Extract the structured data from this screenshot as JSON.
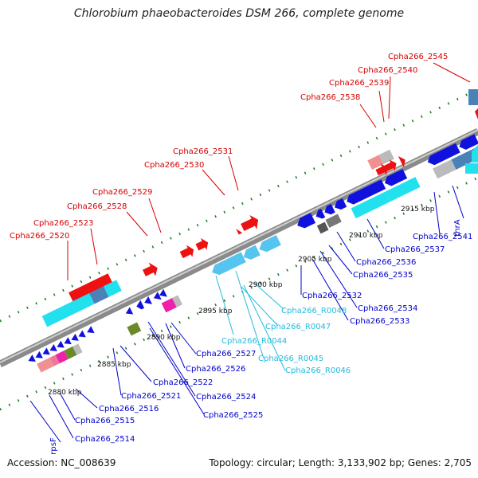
{
  "header": {
    "title": "Chlorobium phaeobacteroides DSM 266, complete genome"
  },
  "footer": {
    "accession": "Accession: NC_008639",
    "topology": "Topology: circular; Length: 3,133,902 bp; Genes: 2,705"
  },
  "colors": {
    "forward_label": "#d40000",
    "reverse_label": "#0000cc",
    "rna_label": "#22bbdd",
    "tick": "#1a7a1a",
    "backbone": "#8a8a8a",
    "red_gene": "#ee1111",
    "pink_gene": "#f09090",
    "grey_gene": "#bbbbbb",
    "cyan_gene": "#22e0ee",
    "steel_gene": "#4a82b8",
    "blue_gene": "#1111dd",
    "sky_gene": "#55c4ee",
    "dark_gene": "#555555",
    "olive_gene": "#6a8a2a",
    "magenta_gene": "#ee22aa",
    "rose_gene": "#ee7799"
  },
  "scale": [
    "2880 kbp",
    "2885 kbp",
    "2890 kbp",
    "2895 kbp",
    "2900 kbp",
    "2905 kbp",
    "2910 kbp",
    "2915 kbp"
  ],
  "forward_labels": [
    "Cpha266_2520",
    "Cpha266_2523",
    "Cpha266_2528",
    "Cpha266_2529",
    "Cpha266_2530",
    "Cpha266_2531",
    "Cpha266_2538",
    "Cpha266_2539",
    "Cpha266_2540",
    "Cpha266_2545"
  ],
  "reverse_labels": [
    "rpsF",
    "Cpha266_2514",
    "Cpha266_2515",
    "Cpha266_2516",
    "Cpha266_2521",
    "Cpha266_2522",
    "Cpha266_2524",
    "Cpha266_2525",
    "Cpha266_2526",
    "Cpha266_2527",
    "Cpha266_2532",
    "Cpha266_2533",
    "Cpha266_2534",
    "Cpha266_2535",
    "Cpha266_2536",
    "Cpha266_2537",
    "Cpha266_2541",
    "thrA"
  ],
  "rna_labels": [
    "Cpha266_R0044",
    "Cpha266_R0045",
    "Cpha266_R0046",
    "Cpha266_R0047",
    "Cpha266_R0048"
  ]
}
